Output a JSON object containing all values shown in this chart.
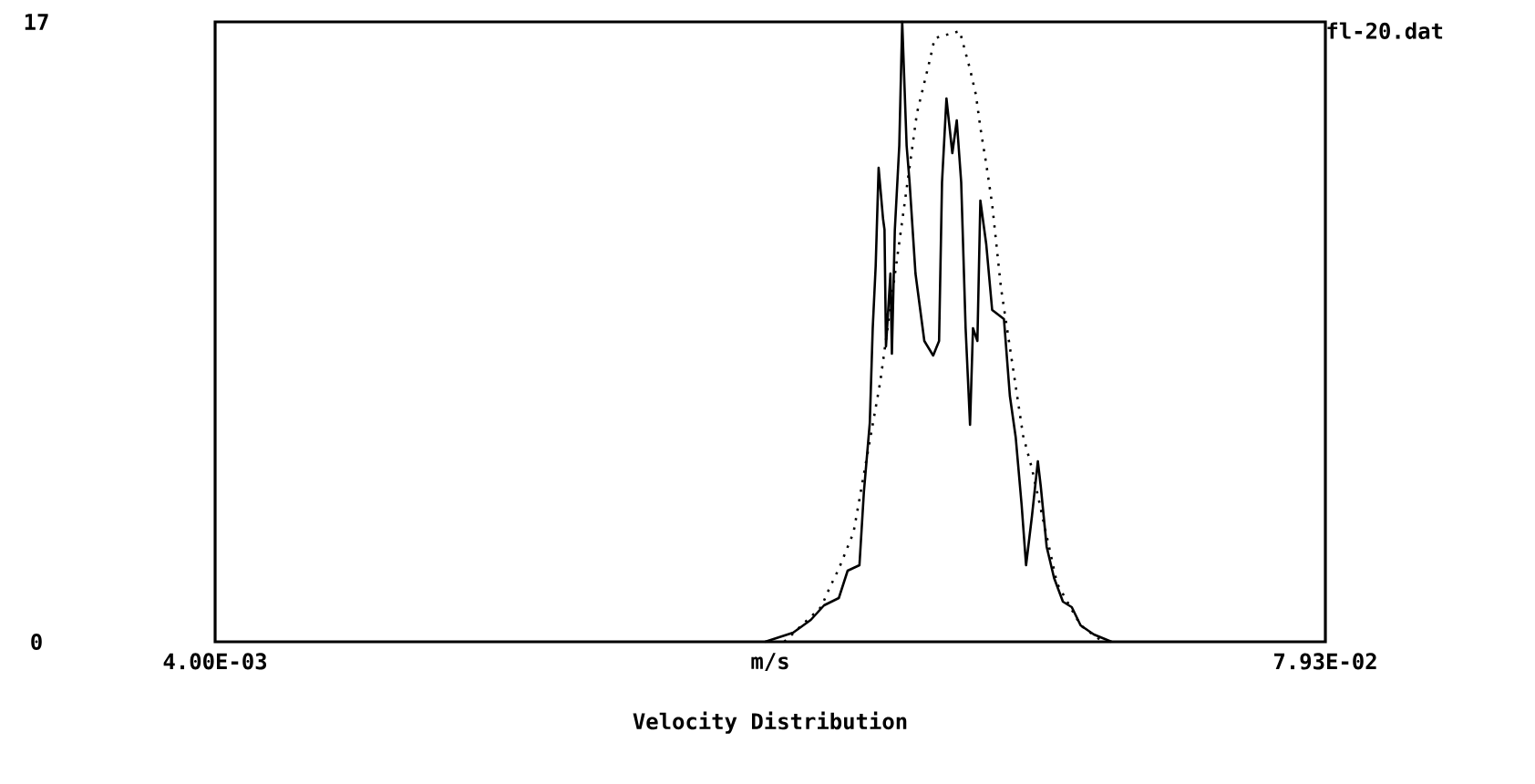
{
  "chart_data": {
    "type": "line",
    "title": "Velocity Distribution",
    "xlabel": "m/s",
    "annotations": [
      "fl-20.dat"
    ],
    "series": [
      {
        "color": "#000000",
        "line_style": "solid",
        "x": [
          0.0413,
          0.0432,
          0.0444,
          0.0453,
          0.0463,
          0.0469,
          0.0477,
          0.048,
          0.0484,
          0.0486,
          0.0488,
          0.049,
          0.0493,
          0.0494,
          0.0495,
          0.0498,
          0.0499,
          0.0501,
          0.0504,
          0.0506,
          0.0509,
          0.0511,
          0.0515,
          0.0521,
          0.0527,
          0.0531,
          0.0533,
          0.0536,
          0.054,
          0.0543,
          0.0546,
          0.0549,
          0.0552,
          0.0554,
          0.0557,
          0.0559,
          0.0563,
          0.0567,
          0.0575,
          0.0579,
          0.0583,
          0.0587,
          0.059,
          0.0594,
          0.0598,
          0.06,
          0.0604,
          0.0609,
          0.0615,
          0.0621,
          0.0627,
          0.0636,
          0.0648
        ],
        "values": [
          0,
          0.25,
          0.6,
          1.0,
          1.2,
          1.95,
          2.1,
          4.1,
          6,
          8.6,
          10.3,
          13,
          11.6,
          11.3,
          8.1,
          10.1,
          7.9,
          11.3,
          13.6,
          17,
          13.6,
          12.6,
          10.1,
          8.25,
          7.85,
          8.25,
          12.6,
          14.9,
          13.4,
          14.3,
          12.6,
          8.6,
          5.95,
          8.6,
          8.25,
          12.1,
          10.9,
          9.1,
          8.85,
          6.75,
          5.6,
          3.75,
          2.1,
          3.45,
          4.95,
          4.25,
          2.6,
          1.75,
          1.1,
          0.95,
          0.45,
          0.2,
          0
        ]
      },
      {
        "color": "#000000",
        "line_style": "dotted",
        "x": [
          0.0426,
          0.0451,
          0.0457,
          0.0463,
          0.0473,
          0.0491,
          0.0516,
          0.0525,
          0.0528,
          0.0545,
          0.0552,
          0.0556,
          0.0559,
          0.0563,
          0.0567,
          0.0573,
          0.0588,
          0.0594,
          0.0611,
          0.0627,
          0.0642
        ],
        "values": [
          0,
          0.95,
          1.5,
          2.0,
          3.0,
          7.1,
          14.5,
          16.0,
          16.55,
          16.75,
          15.7,
          15,
          14.1,
          13.1,
          12,
          9.7,
          5.65,
          4.75,
          1.6,
          0.45,
          0
        ]
      }
    ],
    "xlim": [
      0.004,
      0.0793
    ],
    "ylim": [
      0,
      17
    ],
    "xticks": [
      {
        "value": 0.004,
        "label": "4.00E-03"
      },
      {
        "value": 0.0793,
        "label": "7.93E-02"
      }
    ],
    "yticks": [
      0,
      17
    ],
    "marker": "none"
  }
}
